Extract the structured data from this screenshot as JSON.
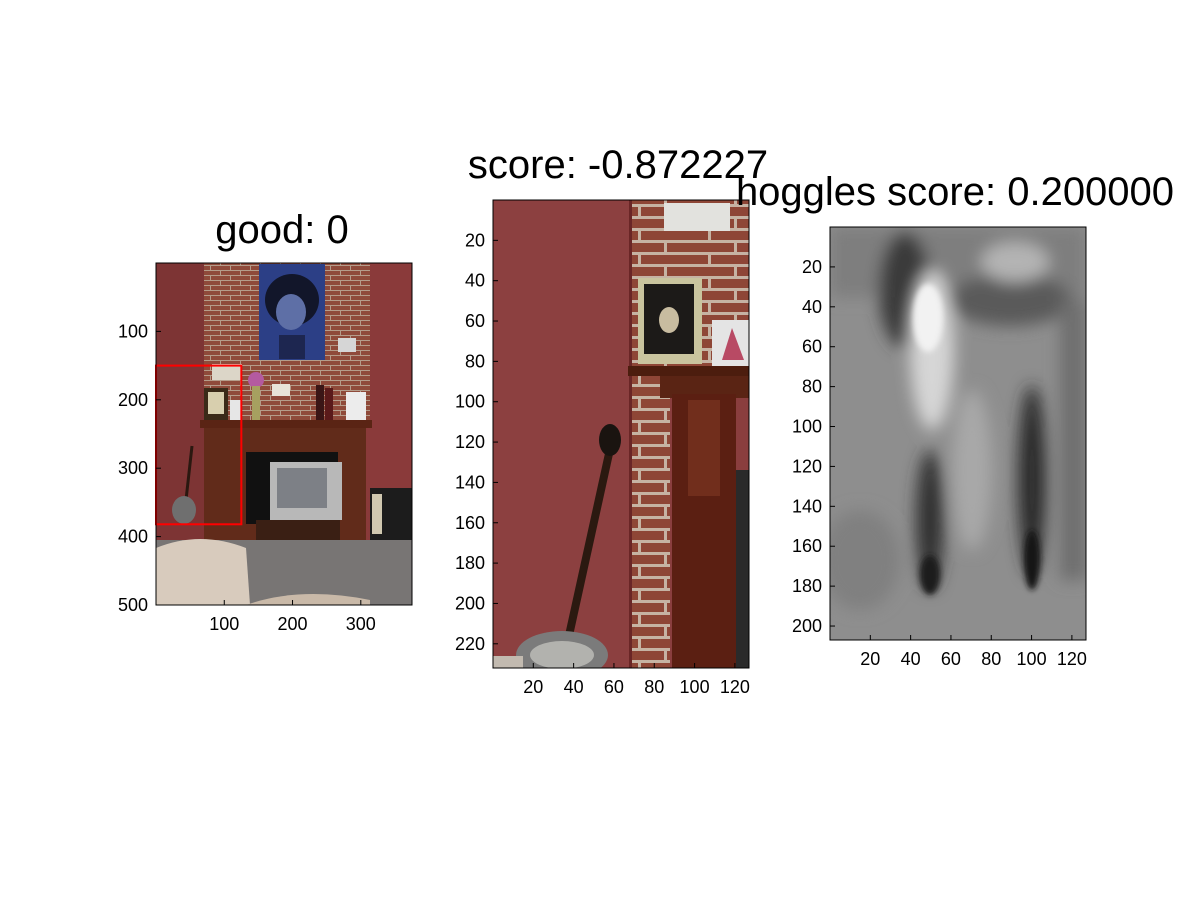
{
  "figure": {
    "background": "#ffffff",
    "box_color": "#ff0000",
    "axis_color": "#000000"
  },
  "chart_data": [
    {
      "type": "image",
      "title": "good: 0",
      "content": "living room scene with fireplace, television, banjo and poster",
      "xlim": [
        0,
        375
      ],
      "ylim": [
        500,
        0
      ],
      "xticks": [
        100,
        200,
        300
      ],
      "yticks": [
        100,
        200,
        300,
        400,
        500
      ],
      "detection_box": {
        "x1": 0,
        "y1": 150,
        "x2": 125,
        "y2": 382,
        "color": "#ff0000"
      }
    },
    {
      "type": "image",
      "title": "score: -0.872227",
      "content": "cropped detection window: wall, banjo and mantel",
      "xlim": [
        0,
        127
      ],
      "ylim": [
        232,
        0
      ],
      "xticks": [
        20,
        40,
        60,
        80,
        100,
        120
      ],
      "yticks": [
        20,
        40,
        60,
        80,
        100,
        120,
        140,
        160,
        180,
        200,
        220
      ]
    },
    {
      "type": "heatmap",
      "title": "hoggles score: 0.200000",
      "content": "grayscale HOGgles reconstruction of the window",
      "colormap": "gray",
      "xlim": [
        0,
        127
      ],
      "ylim": [
        207,
        0
      ],
      "xticks": [
        20,
        40,
        60,
        80,
        100,
        120
      ],
      "yticks": [
        20,
        40,
        60,
        80,
        100,
        120,
        140,
        160,
        180,
        200
      ]
    }
  ]
}
